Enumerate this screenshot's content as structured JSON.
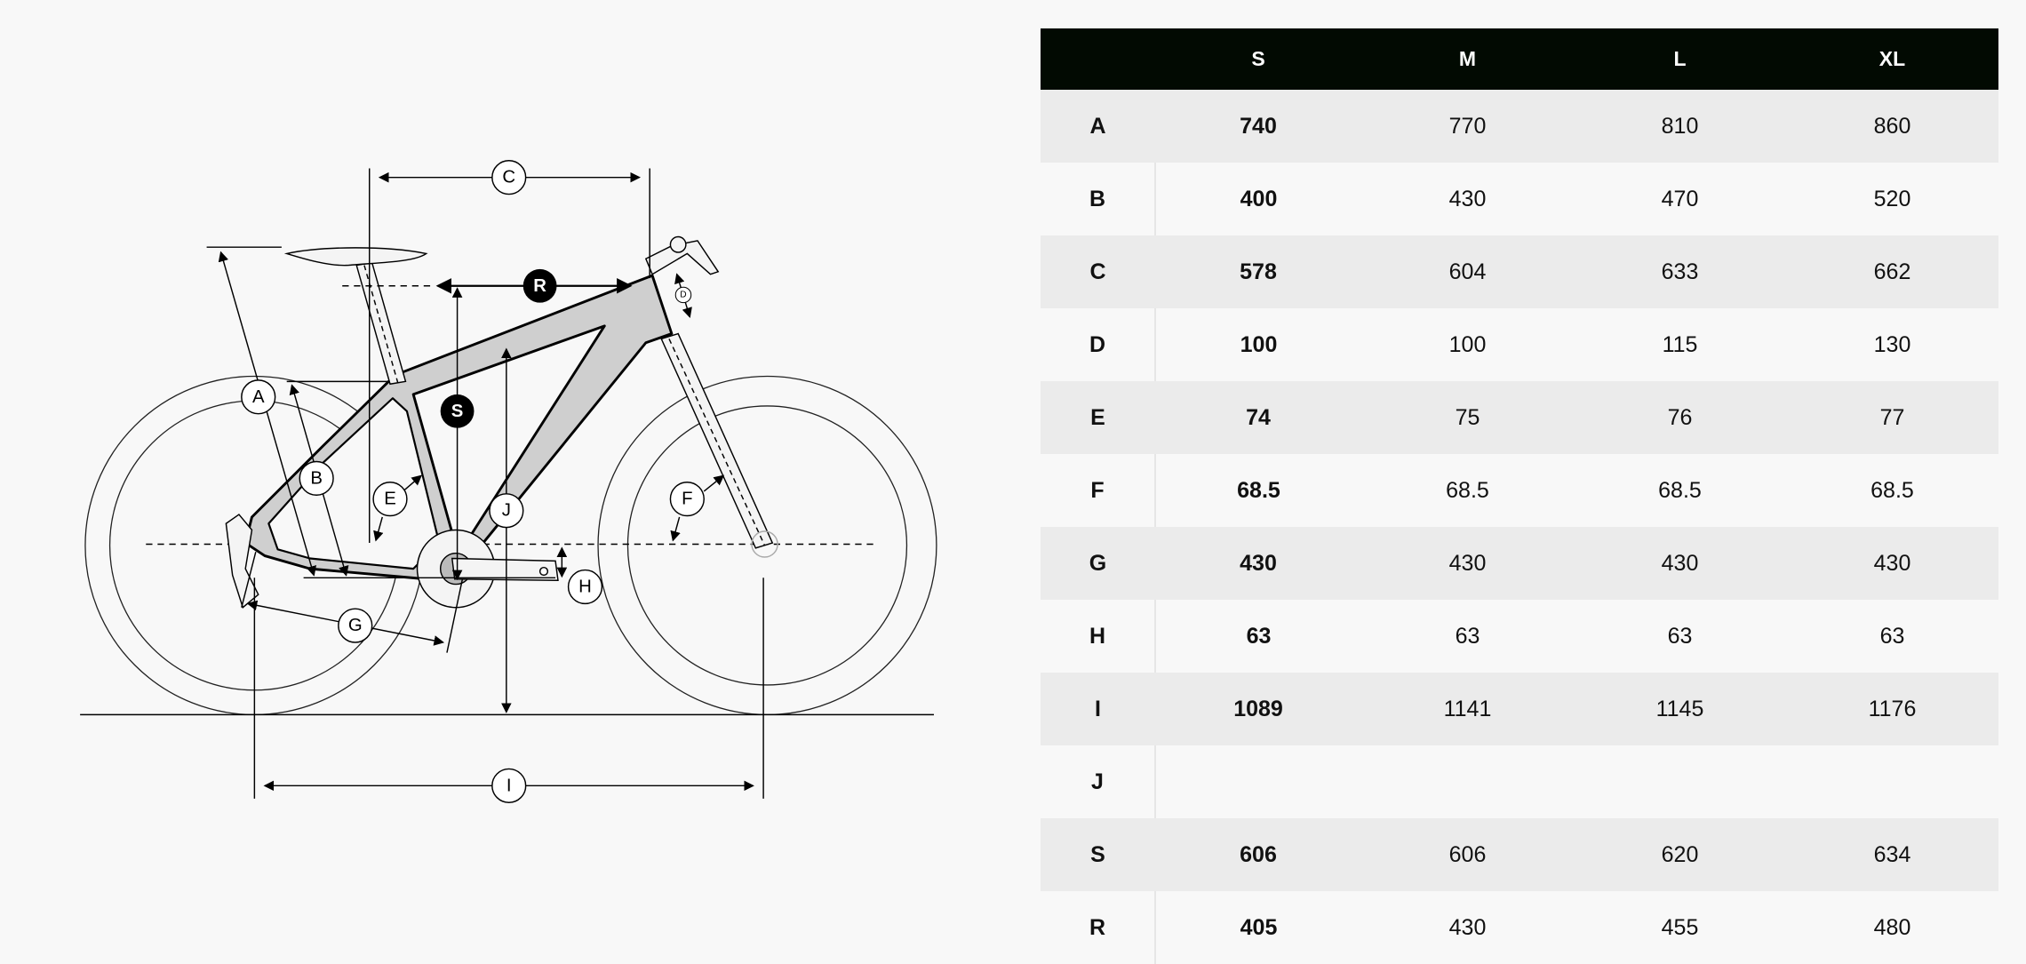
{
  "diagram": {
    "labels": {
      "A": "A",
      "B": "B",
      "C": "C",
      "D": "D",
      "E": "E",
      "F": "F",
      "G": "G",
      "H": "H",
      "I": "I",
      "J": "J",
      "S": "S",
      "R": "R"
    }
  },
  "table": {
    "columns": [
      "",
      "S",
      "M",
      "L",
      "XL"
    ],
    "rows": [
      {
        "label": "A",
        "values": [
          "740",
          "770",
          "810",
          "860"
        ]
      },
      {
        "label": "B",
        "values": [
          "400",
          "430",
          "470",
          "520"
        ]
      },
      {
        "label": "C",
        "values": [
          "578",
          "604",
          "633",
          "662"
        ]
      },
      {
        "label": "D",
        "values": [
          "100",
          "100",
          "115",
          "130"
        ]
      },
      {
        "label": "E",
        "values": [
          "74",
          "75",
          "76",
          "77"
        ]
      },
      {
        "label": "F",
        "values": [
          "68.5",
          "68.5",
          "68.5",
          "68.5"
        ]
      },
      {
        "label": "G",
        "values": [
          "430",
          "430",
          "430",
          "430"
        ]
      },
      {
        "label": "H",
        "values": [
          "63",
          "63",
          "63",
          "63"
        ]
      },
      {
        "label": "I",
        "values": [
          "1089",
          "1141",
          "1145",
          "1176"
        ]
      },
      {
        "label": "J",
        "values": [
          "",
          "",
          "",
          ""
        ]
      },
      {
        "label": "S",
        "values": [
          "606",
          "606",
          "620",
          "634"
        ]
      },
      {
        "label": "R",
        "values": [
          "405",
          "430",
          "455",
          "480"
        ]
      }
    ]
  },
  "colors": {
    "header_bg": "#020a02",
    "row_alt": "#ebebeb",
    "frame_fill": "#cfcfcf",
    "background": "#f8f8f8"
  }
}
